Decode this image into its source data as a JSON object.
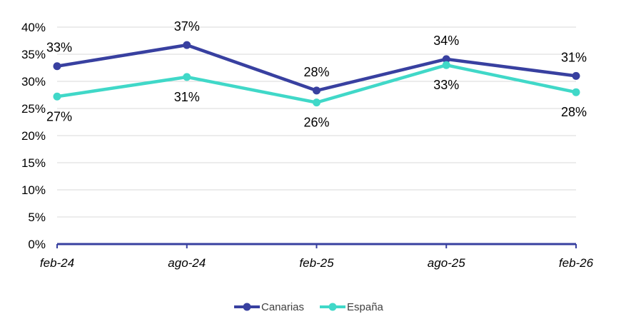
{
  "chart_data": {
    "type": "line",
    "title": "",
    "xlabel": "",
    "ylabel": "",
    "categories": [
      "feb-24",
      "ago-24",
      "feb-25",
      "ago-25",
      "feb-26"
    ],
    "ylim": [
      0,
      40
    ],
    "y_ticks": [
      "0%",
      "5%",
      "10%",
      "15%",
      "20%",
      "25%",
      "30%",
      "35%",
      "40%"
    ],
    "grid": true,
    "legend_position": "bottom",
    "series": [
      {
        "name": "Canarias",
        "color": "#3840A0",
        "values": [
          32.8,
          36.7,
          28.3,
          34.1,
          31.0
        ],
        "labels": [
          "33%",
          "37%",
          "28%",
          "34%",
          "31%"
        ],
        "label_side": [
          "above",
          "above",
          "above",
          "above",
          "above"
        ]
      },
      {
        "name": "España",
        "color": "#40D8C8",
        "values": [
          27.2,
          30.8,
          26.1,
          33.0,
          28.0
        ],
        "labels": [
          "27%",
          "31%",
          "26%",
          "33%",
          "28%"
        ],
        "label_side": [
          "below",
          "below",
          "below",
          "below",
          "below"
        ]
      }
    ]
  }
}
